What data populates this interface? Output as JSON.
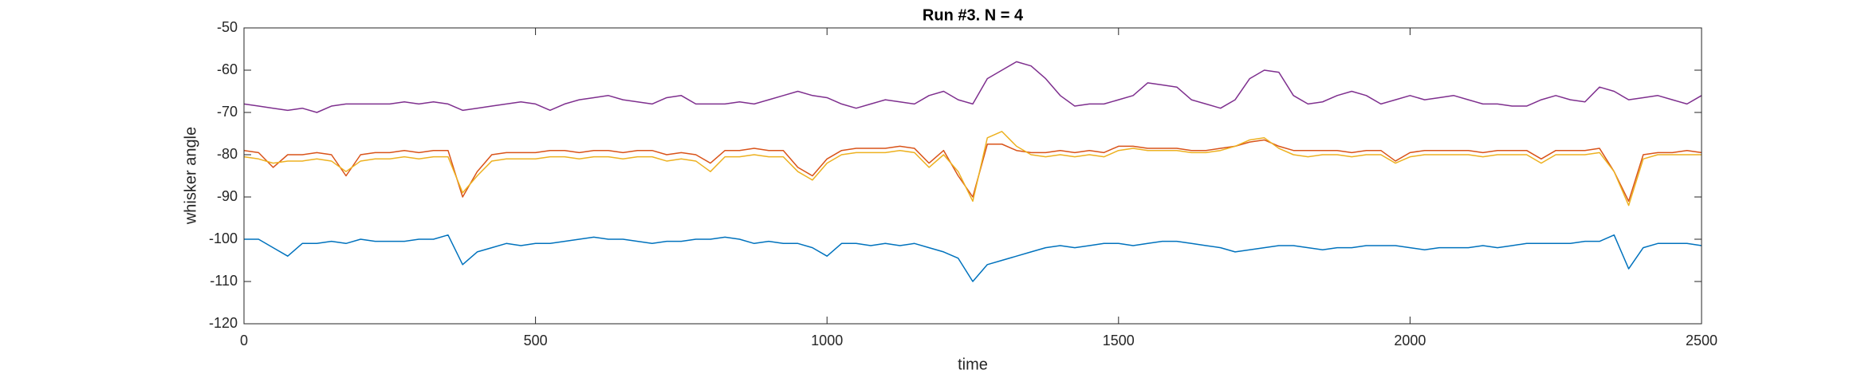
{
  "chart_data": {
    "type": "line",
    "title": "Run #3. N = 4",
    "x_label": "time",
    "y_label": "whisker angle",
    "xlim": [
      0,
      2500
    ],
    "xticks": [
      0,
      500,
      1000,
      1500,
      2000,
      2500
    ],
    "ylim": [
      -120,
      -50
    ],
    "yticks": [
      -120,
      -110,
      -100,
      -90,
      -80,
      -70,
      -60,
      -50
    ],
    "x": [
      0,
      25,
      50,
      75,
      100,
      125,
      150,
      175,
      200,
      225,
      250,
      275,
      300,
      325,
      350,
      375,
      400,
      425,
      450,
      475,
      500,
      525,
      550,
      575,
      600,
      625,
      650,
      675,
      700,
      725,
      750,
      775,
      800,
      825,
      850,
      875,
      900,
      925,
      950,
      975,
      1000,
      1025,
      1050,
      1075,
      1100,
      1125,
      1150,
      1175,
      1200,
      1225,
      1250,
      1275,
      1300,
      1325,
      1350,
      1375,
      1400,
      1425,
      1450,
      1475,
      1500,
      1525,
      1550,
      1575,
      1600,
      1625,
      1650,
      1675,
      1700,
      1725,
      1750,
      1775,
      1800,
      1825,
      1850,
      1875,
      1900,
      1925,
      1950,
      1975,
      2000,
      2025,
      2050,
      2075,
      2100,
      2125,
      2150,
      2175,
      2200,
      2225,
      2250,
      2275,
      2300,
      2325,
      2350,
      2375,
      2400,
      2425,
      2450,
      2475,
      2500
    ],
    "series": [
      {
        "color": "#0072BD",
        "values": [
          -100,
          -100,
          -102,
          -104,
          -101,
          -101,
          -100.5,
          -101,
          -100,
          -100.5,
          -100.5,
          -100.5,
          -100,
          -100,
          -99,
          -106,
          -103,
          -102,
          -101,
          -101.5,
          -101,
          -101,
          -100.5,
          -100,
          -99.5,
          -100,
          -100,
          -100.5,
          -101,
          -100.5,
          -100.5,
          -100,
          -100,
          -99.5,
          -100,
          -101,
          -100.5,
          -101,
          -101,
          -102,
          -104,
          -101,
          -101,
          -101.5,
          -101,
          -101.5,
          -101,
          -102,
          -103,
          -104.5,
          -110,
          -106,
          -105,
          -104,
          -103,
          -102,
          -101.5,
          -102,
          -101.5,
          -101,
          -101,
          -101.5,
          -101,
          -100.5,
          -100.5,
          -101,
          -101.5,
          -102,
          -103,
          -102.5,
          -102,
          -101.5,
          -101.5,
          -102,
          -102.5,
          -102,
          -102,
          -101.5,
          -101.5,
          -101.5,
          -102,
          -102.5,
          -102,
          -102,
          -102,
          -101.5,
          -102,
          -101.5,
          -101,
          -101,
          -101,
          -101,
          -100.5,
          -100.5,
          -99,
          -107,
          -102,
          -101,
          -101,
          -101,
          -101.5
        ]
      },
      {
        "color": "#D95319",
        "values": [
          -79,
          -79.5,
          -83,
          -80,
          -80,
          -79.5,
          -80,
          -85,
          -80,
          -79.5,
          -79.5,
          -79,
          -79.5,
          -79,
          -79,
          -90,
          -84,
          -80,
          -79.5,
          -79.5,
          -79.5,
          -79,
          -79,
          -79.5,
          -79,
          -79,
          -79.5,
          -79,
          -79,
          -80,
          -79.5,
          -80,
          -82,
          -79,
          -79,
          -78.5,
          -79,
          -79,
          -83,
          -85,
          -81,
          -79,
          -78.5,
          -78.5,
          -78.5,
          -78,
          -78.5,
          -82,
          -79,
          -85,
          -90,
          -77.5,
          -77.5,
          -79,
          -79.5,
          -79.5,
          -79,
          -79.5,
          -79,
          -79.5,
          -78,
          -78,
          -78.5,
          -78.5,
          -78.5,
          -79,
          -79,
          -78.5,
          -78,
          -77,
          -76.5,
          -78,
          -79,
          -79,
          -79,
          -79,
          -79.5,
          -79,
          -79,
          -81.5,
          -79.5,
          -79,
          -79,
          -79,
          -79,
          -79.5,
          -79,
          -79,
          -79,
          -81,
          -79,
          -79,
          -79,
          -78.5,
          -84,
          -91,
          -80,
          -79.5,
          -79.5,
          -79,
          -79.5
        ]
      },
      {
        "color": "#EDB120",
        "values": [
          -80.5,
          -81,
          -82,
          -81.5,
          -81.5,
          -81,
          -81.5,
          -84,
          -81.5,
          -81,
          -81,
          -80.5,
          -81,
          -80.5,
          -80.5,
          -89,
          -85,
          -81.5,
          -81,
          -81,
          -81,
          -80.5,
          -80.5,
          -81,
          -80.5,
          -80.5,
          -81,
          -80.5,
          -80.5,
          -81.5,
          -81,
          -81.5,
          -84,
          -80.5,
          -80.5,
          -80,
          -80.5,
          -80.5,
          -84,
          -86,
          -82,
          -80,
          -79.5,
          -79.5,
          -79.5,
          -79,
          -79.5,
          -83,
          -80,
          -84,
          -91,
          -76,
          -74.5,
          -78,
          -80,
          -80.5,
          -80,
          -80.5,
          -80,
          -80.5,
          -79,
          -78.5,
          -79,
          -79,
          -79,
          -79.5,
          -79.5,
          -79,
          -78,
          -76.5,
          -76,
          -78.5,
          -80,
          -80.5,
          -80,
          -80,
          -80.5,
          -80,
          -80,
          -82,
          -80.5,
          -80,
          -80,
          -80,
          -80,
          -80.5,
          -80,
          -80,
          -80,
          -82,
          -80,
          -80,
          -80,
          -79.5,
          -84,
          -92,
          -81,
          -80,
          -80,
          -80,
          -80
        ]
      },
      {
        "color": "#7E2F8E",
        "values": [
          -68,
          -68.5,
          -69,
          -69.5,
          -69,
          -70,
          -68.5,
          -68,
          -68,
          -68,
          -68,
          -67.5,
          -68,
          -67.5,
          -68,
          -69.5,
          -69,
          -68.5,
          -68,
          -67.5,
          -68,
          -69.5,
          -68,
          -67,
          -66.5,
          -66,
          -67,
          -67.5,
          -68,
          -66.5,
          -66,
          -68,
          -68,
          -68,
          -67.5,
          -68,
          -67,
          -66,
          -65,
          -66,
          -66.5,
          -68,
          -69,
          -68,
          -67,
          -67.5,
          -68,
          -66,
          -65,
          -67,
          -68,
          -62,
          -60,
          -58,
          -59,
          -62,
          -66,
          -68.5,
          -68,
          -68,
          -67,
          -66,
          -63,
          -63.5,
          -64,
          -67,
          -68,
          -69,
          -67,
          -62,
          -60,
          -60.5,
          -66,
          -68,
          -67.5,
          -66,
          -65,
          -66,
          -68,
          -67,
          -66,
          -67,
          -66.5,
          -66,
          -67,
          -68,
          -68,
          -68.5,
          -68.5,
          -67,
          -66,
          -67,
          -67.5,
          -64,
          -65,
          -67,
          -66.5,
          -66,
          -67,
          -68,
          -66
        ]
      }
    ]
  }
}
